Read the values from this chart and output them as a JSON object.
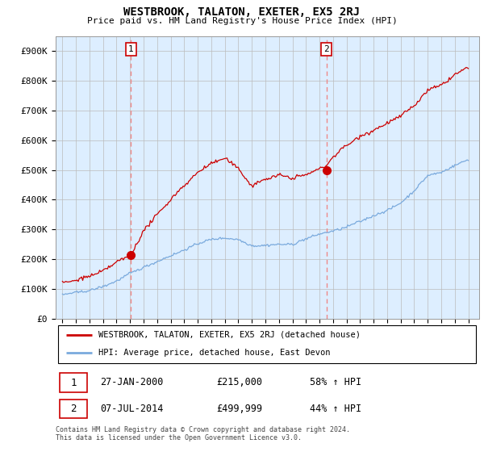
{
  "title": "WESTBROOK, TALATON, EXETER, EX5 2RJ",
  "subtitle": "Price paid vs. HM Land Registry's House Price Index (HPI)",
  "hpi_label": "HPI: Average price, detached house, East Devon",
  "property_label": "WESTBROOK, TALATON, EXETER, EX5 2RJ (detached house)",
  "footnote": "Contains HM Land Registry data © Crown copyright and database right 2024.\nThis data is licensed under the Open Government Licence v3.0.",
  "sale1_date": "27-JAN-2000",
  "sale1_price": "£215,000",
  "sale1_hpi": "58% ↑ HPI",
  "sale2_date": "07-JUL-2014",
  "sale2_price": "£499,999",
  "sale2_hpi": "44% ↑ HPI",
  "property_color": "#cc0000",
  "hpi_color": "#7aaadd",
  "sale_marker_color": "#cc0000",
  "vline_color": "#ee8888",
  "bg_color": "#ddeeff",
  "ylim": [
    0,
    950000
  ],
  "yticks": [
    0,
    100000,
    200000,
    300000,
    400000,
    500000,
    600000,
    700000,
    800000,
    900000
  ],
  "ytick_labels": [
    "£0",
    "£100K",
    "£200K",
    "£300K",
    "£400K",
    "£500K",
    "£600K",
    "£700K",
    "£800K",
    "£900K"
  ],
  "sale1_year": 2000.07,
  "sale1_value": 215000,
  "sale2_year": 2014.51,
  "sale2_value": 499999
}
